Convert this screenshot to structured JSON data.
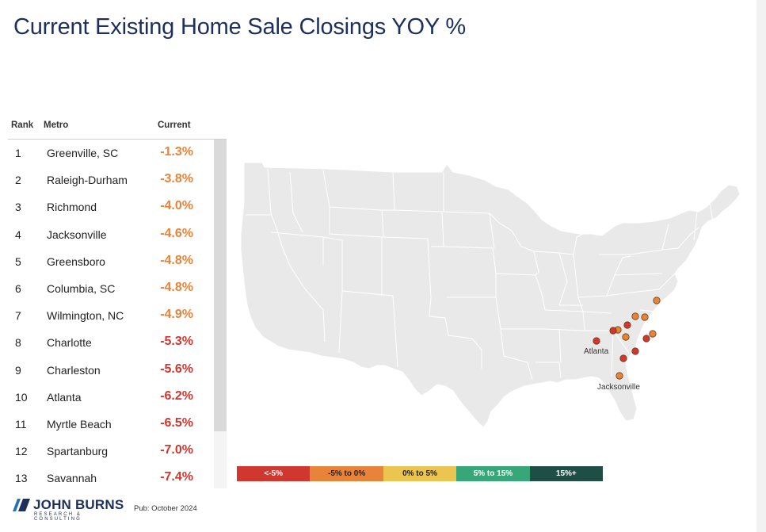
{
  "title": "Current Existing Home Sale Closings YOY %",
  "table": {
    "headers": {
      "rank": "Rank",
      "metro": "Metro",
      "current": "Current"
    },
    "rows": [
      {
        "rank": "1",
        "metro": "Greenville, SC",
        "value": "-1.3%",
        "color": "#e8833a"
      },
      {
        "rank": "2",
        "metro": "Raleigh-Durham",
        "value": "-3.8%",
        "color": "#e8833a"
      },
      {
        "rank": "3",
        "metro": "Richmond",
        "value": "-4.0%",
        "color": "#e8833a"
      },
      {
        "rank": "4",
        "metro": "Jacksonville",
        "value": "-4.6%",
        "color": "#e8833a"
      },
      {
        "rank": "5",
        "metro": "Greensboro",
        "value": "-4.8%",
        "color": "#e8833a"
      },
      {
        "rank": "6",
        "metro": "Columbia, SC",
        "value": "-4.8%",
        "color": "#e8833a"
      },
      {
        "rank": "7",
        "metro": "Wilmington, NC",
        "value": "-4.9%",
        "color": "#e8833a"
      },
      {
        "rank": "8",
        "metro": "Charlotte",
        "value": "-5.3%",
        "color": "#d0372f"
      },
      {
        "rank": "9",
        "metro": "Charleston",
        "value": "-5.6%",
        "color": "#d0372f"
      },
      {
        "rank": "10",
        "metro": "Atlanta",
        "value": "-6.2%",
        "color": "#d0372f"
      },
      {
        "rank": "11",
        "metro": "Myrtle Beach",
        "value": "-6.5%",
        "color": "#d0372f"
      },
      {
        "rank": "12",
        "metro": "Spartanburg",
        "value": "-7.0%",
        "color": "#d0372f"
      },
      {
        "rank": "13",
        "metro": "Savannah",
        "value": "-7.4%",
        "color": "#d0372f"
      }
    ]
  },
  "map": {
    "labels": {
      "atlanta": "Atlanta",
      "jacksonville": "Jacksonville"
    }
  },
  "chart_data": {
    "type": "table",
    "title": "Current Existing Home Sale Closings YOY %",
    "columns": [
      "Rank",
      "Metro",
      "Current"
    ],
    "categories": [
      "Greenville, SC",
      "Raleigh-Durham",
      "Richmond",
      "Jacksonville",
      "Greensboro",
      "Columbia, SC",
      "Wilmington, NC",
      "Charlotte",
      "Charleston",
      "Atlanta",
      "Myrtle Beach",
      "Spartanburg",
      "Savannah"
    ],
    "values": [
      -1.3,
      -3.8,
      -4.0,
      -4.6,
      -4.8,
      -4.8,
      -4.9,
      -5.3,
      -5.6,
      -6.2,
      -6.5,
      -7.0,
      -7.4
    ],
    "legend": [
      {
        "label": "<-5%",
        "color": "#d0372f",
        "text_color": "#ffffff"
      },
      {
        "label": "-5% to 0%",
        "color": "#e8833a",
        "text_color": "#222222"
      },
      {
        "label": "0% to 5%",
        "color": "#ecc450",
        "text_color": "#222222"
      },
      {
        "label": "5% to 15%",
        "color": "#37a77a",
        "text_color": "#ffffff"
      },
      {
        "label": "15%+",
        "color": "#1f4e45",
        "text_color": "#ffffff"
      }
    ]
  },
  "branding": {
    "logo_name": "JOHN BURNS",
    "logo_sub": "RESEARCH & CONSULTING",
    "pub": "Pub: October 2024"
  },
  "colors": {
    "title": "#1d2f5c",
    "map_land": "#e9e9e9",
    "map_border": "#ffffff"
  }
}
